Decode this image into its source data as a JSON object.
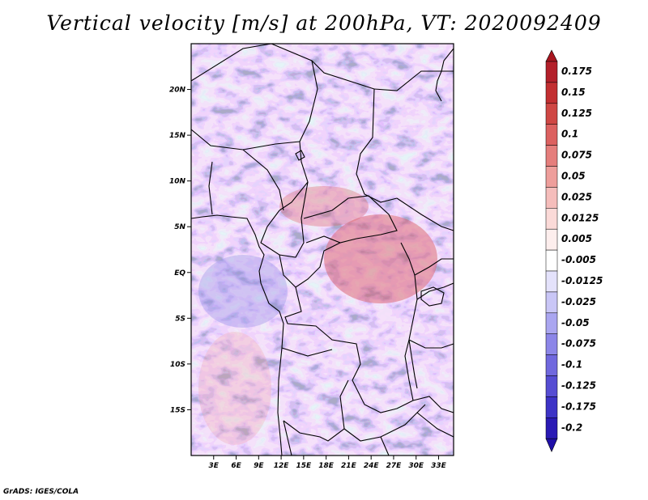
{
  "title": "Vertical velocity [m/s] at 200hPa, VT: 2020092409",
  "credit": "GrADS: IGES/COLA",
  "map": {
    "lon_range": [
      0,
      35
    ],
    "lat_range": [
      -20,
      25
    ],
    "lon_ticks": [
      {
        "value": 3,
        "label": "3E"
      },
      {
        "value": 6,
        "label": "6E"
      },
      {
        "value": 9,
        "label": "9E"
      },
      {
        "value": 12,
        "label": "12E"
      },
      {
        "value": 15,
        "label": "15E"
      },
      {
        "value": 18,
        "label": "18E"
      },
      {
        "value": 21,
        "label": "21E"
      },
      {
        "value": 24,
        "label": "24E"
      },
      {
        "value": 27,
        "label": "27E"
      },
      {
        "value": 30,
        "label": "30E"
      },
      {
        "value": 33,
        "label": "33E"
      }
    ],
    "lat_ticks": [
      {
        "value": 20,
        "label": "20N"
      },
      {
        "value": 15,
        "label": "15N"
      },
      {
        "value": 10,
        "label": "10N"
      },
      {
        "value": 5,
        "label": "5N"
      },
      {
        "value": 0,
        "label": "EQ"
      },
      {
        "value": -5,
        "label": "5S"
      },
      {
        "value": -10,
        "label": "10S"
      },
      {
        "value": -15,
        "label": "15S"
      }
    ]
  },
  "colorbar": {
    "levels": [
      {
        "label": "0.175",
        "color": "#b3202a"
      },
      {
        "label": "0.15",
        "color": "#c22f31"
      },
      {
        "label": "0.125",
        "color": "#cf4744"
      },
      {
        "label": "0.1",
        "color": "#dc6160"
      },
      {
        "label": "0.075",
        "color": "#e57e7c"
      },
      {
        "label": "0.05",
        "color": "#ee9e9b"
      },
      {
        "label": "0.025",
        "color": "#f5bdbb"
      },
      {
        "label": "0.0125",
        "color": "#fbdad8"
      },
      {
        "label": "0.005",
        "color": "#fdeeed"
      },
      {
        "label": "-0.005",
        "color": "#ffffff"
      },
      {
        "label": "-0.0125",
        "color": "#e4e2fb"
      },
      {
        "label": "-0.025",
        "color": "#c9c6f6"
      },
      {
        "label": "-0.05",
        "color": "#aaa6f0"
      },
      {
        "label": "-0.075",
        "color": "#8c86e8"
      },
      {
        "label": "-0.1",
        "color": "#7068de"
      },
      {
        "label": "-0.125",
        "color": "#564dd3"
      },
      {
        "label": "-0.175",
        "color": "#3d33c6"
      },
      {
        "label": "-0.2",
        "color": "#2a1ab4"
      }
    ],
    "top_color": "#a8161f",
    "bottom_color": "#1f0fa8",
    "mid_color": "#ffffff"
  }
}
